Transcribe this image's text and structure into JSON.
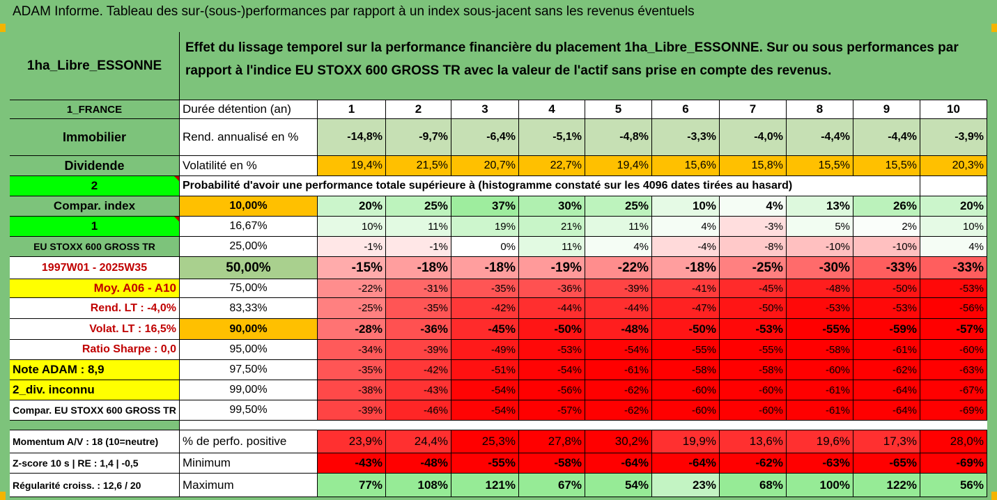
{
  "title": "ADAM Informe. Tableau des sur-(sous-)performances par rapport à un index sous-jacent sans les revenus éventuels",
  "header": {
    "fund_name": "1ha_Libre_ESSONNE",
    "description": "Effet du lissage temporel sur la performance financière du placement 1ha_Libre_ESSONNE. Sur ou sous performances par rapport à l'indice EU STOXX 600 GROSS TR avec la valeur de l'actif sans prise en compte des revenus."
  },
  "colors": {
    "green_header": "#7dc37b",
    "light_green": "#c6e0b4",
    "orange": "#ffc000",
    "bright_green": "#00ff00",
    "yellow": "#ffff00",
    "red_text": "#c00000"
  },
  "left_labels": {
    "country": "1_FRANCE",
    "category": "Immobilier",
    "type": "Dividende",
    "num2": "2",
    "compar_index": "Compar. index",
    "num1": "1",
    "index_name": "EU STOXX 600 GROSS TR",
    "period": "1997W01 - 2025W35",
    "moy": "Moy. A06 - A10",
    "rend_lt": "Rend. LT :   -4,0%",
    "volat_lt": "Volat. LT :   16,5%",
    "sharpe": "Ratio Sharpe :   0,0",
    "note": "Note ADAM : 8,9",
    "div": "2_div. inconnu",
    "compar_full": "Compar. EU STOXX 600 GROSS TR",
    "momentum": "Momentum A/V : 18 (10=neutre)",
    "zscore": "Z-score 10 s  |  RE : 1,4  |  -0,5",
    "regularite": "Régularité croiss. : 12,6 / 20"
  },
  "row_labels": {
    "duree": "Durée détention (an)",
    "rend": "Rend. annualisé en %",
    "volat": "Volatilité en %",
    "proba": "Probabilité d'avoir une performance totale supérieure à (histogramme constaté sur les 4096 dates tirées au hasard)",
    "perf_pos": "% de perfo. positive",
    "minimum": "Minimum",
    "maximum": "Maximum"
  },
  "years": [
    "1",
    "2",
    "3",
    "4",
    "5",
    "6",
    "7",
    "8",
    "9",
    "10"
  ],
  "rend": [
    "-14,8%",
    "-9,7%",
    "-6,4%",
    "-5,1%",
    "-4,8%",
    "-3,3%",
    "-4,0%",
    "-4,4%",
    "-4,4%",
    "-3,9%"
  ],
  "volat": [
    "19,4%",
    "21,5%",
    "20,7%",
    "22,7%",
    "19,4%",
    "15,6%",
    "15,8%",
    "15,5%",
    "15,5%",
    "20,3%"
  ],
  "quantiles": [
    {
      "label": "10,00%",
      "values": [
        "20%",
        "25%",
        "37%",
        "30%",
        "25%",
        "10%",
        "4%",
        "13%",
        "26%",
        "20%"
      ]
    },
    {
      "label": "16,67%",
      "values": [
        "10%",
        "11%",
        "19%",
        "21%",
        "11%",
        "4%",
        "-3%",
        "5%",
        "2%",
        "10%"
      ]
    },
    {
      "label": "25,00%",
      "values": [
        "-1%",
        "-1%",
        "0%",
        "11%",
        "4%",
        "-4%",
        "-8%",
        "-10%",
        "-10%",
        "4%"
      ]
    },
    {
      "label": "50,00%",
      "values": [
        "-15%",
        "-18%",
        "-18%",
        "-19%",
        "-22%",
        "-18%",
        "-25%",
        "-30%",
        "-33%",
        "-33%"
      ]
    },
    {
      "label": "75,00%",
      "values": [
        "-22%",
        "-31%",
        "-35%",
        "-36%",
        "-39%",
        "-41%",
        "-45%",
        "-48%",
        "-50%",
        "-53%"
      ]
    },
    {
      "label": "83,33%",
      "values": [
        "-25%",
        "-35%",
        "-42%",
        "-44%",
        "-44%",
        "-47%",
        "-50%",
        "-53%",
        "-53%",
        "-56%"
      ]
    },
    {
      "label": "90,00%",
      "values": [
        "-28%",
        "-36%",
        "-45%",
        "-50%",
        "-48%",
        "-50%",
        "-53%",
        "-55%",
        "-59%",
        "-57%"
      ]
    },
    {
      "label": "95,00%",
      "values": [
        "-34%",
        "-39%",
        "-49%",
        "-53%",
        "-54%",
        "-55%",
        "-55%",
        "-58%",
        "-61%",
        "-60%"
      ]
    },
    {
      "label": "97,50%",
      "values": [
        "-35%",
        "-42%",
        "-51%",
        "-54%",
        "-61%",
        "-58%",
        "-58%",
        "-60%",
        "-62%",
        "-63%"
      ]
    },
    {
      "label": "99,00%",
      "values": [
        "-38%",
        "-43%",
        "-54%",
        "-56%",
        "-62%",
        "-60%",
        "-60%",
        "-61%",
        "-64%",
        "-67%"
      ]
    },
    {
      "label": "99,50%",
      "values": [
        "-39%",
        "-46%",
        "-54%",
        "-57%",
        "-62%",
        "-60%",
        "-60%",
        "-61%",
        "-64%",
        "-69%"
      ]
    }
  ],
  "perf_pos": [
    "23,9%",
    "24,4%",
    "25,3%",
    "27,8%",
    "30,2%",
    "19,9%",
    "13,6%",
    "19,6%",
    "17,3%",
    "28,0%"
  ],
  "minimum": [
    "-43%",
    "-48%",
    "-55%",
    "-58%",
    "-64%",
    "-64%",
    "-62%",
    "-63%",
    "-65%",
    "-69%"
  ],
  "maximum": [
    "77%",
    "108%",
    "121%",
    "67%",
    "54%",
    "23%",
    "68%",
    "100%",
    "122%",
    "56%"
  ]
}
